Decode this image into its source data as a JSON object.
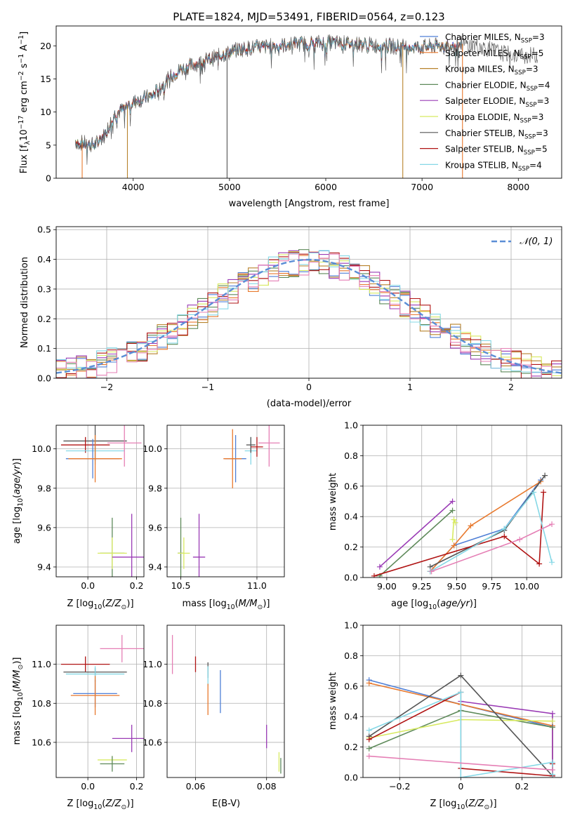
{
  "figure_title": "PLATE=1824, MJD=53491, FIBERID=0564, z=0.123",
  "colors": {
    "chabrier_miles": "#4f7fd6",
    "salpeter_miles": "#e8792e",
    "kroupa_miles": "#b8832c",
    "chabrier_elodie": "#5e8a5a",
    "salpeter_elodie": "#9a3bb5",
    "kroupa_elodie": "#d8ea62",
    "chabrier_stelib": "#555555",
    "salpeter_stelib": "#b01414",
    "kroupa_stelib": "#86d8e6",
    "pink": "#e57fb5",
    "normal": "#5b8ed6",
    "grid": "#b0b0b0"
  },
  "chart_data": [
    {
      "id": "spectrum",
      "type": "line",
      "xlabel": "wavelength [Angstrom, rest frame]",
      "ylabel": "Flux [f_λ10^-17 erg cm^-2 s^-1 A^-1]",
      "xlim": [
        3200,
        8450
      ],
      "ylim": [
        0,
        23
      ],
      "xticks": [
        4000,
        5000,
        6000,
        7000,
        8000
      ],
      "yticks": [
        0,
        5,
        10,
        15,
        20
      ],
      "grid": false,
      "legend_position": "top-right",
      "legend": [
        {
          "label": "Chabrier MILES, N",
          "sub": "SSP",
          "tail": "=3",
          "color": "#4f7fd6"
        },
        {
          "label": "Salpeter MILES, N",
          "sub": "SSP",
          "tail": "=5",
          "color": "#e8792e"
        },
        {
          "label": "Kroupa MILES, N",
          "sub": "SSP",
          "tail": "=3",
          "color": "#b8832c"
        },
        {
          "label": "Chabrier ELODIE, N",
          "sub": "SSP",
          "tail": "=4",
          "color": "#5e8a5a"
        },
        {
          "label": "Salpeter ELODIE, N",
          "sub": "SSP",
          "tail": "=3",
          "color": "#9a3bb5"
        },
        {
          "label": "Kroupa ELODIE, N",
          "sub": "SSP",
          "tail": "=3",
          "color": "#d8ea62"
        },
        {
          "label": "Chabrier STELIB, N",
          "sub": "SSP",
          "tail": "=3",
          "color": "#555555"
        },
        {
          "label": "Salpeter STELIB, N",
          "sub": "SSP",
          "tail": "=5",
          "color": "#b01414"
        },
        {
          "label": "Kroupa STELIB, N",
          "sub": "SSP",
          "tail": "=4",
          "color": "#86d8e6"
        }
      ],
      "continuum": [
        [
          3400,
          5.5
        ],
        [
          3600,
          5.0
        ],
        [
          3700,
          6.5
        ],
        [
          3800,
          9.5
        ],
        [
          3900,
          10.5
        ],
        [
          4000,
          11.5
        ],
        [
          4100,
          12.0
        ],
        [
          4200,
          12.5
        ],
        [
          4300,
          14.0
        ],
        [
          4400,
          15.5
        ],
        [
          4500,
          16.5
        ],
        [
          4700,
          17.5
        ],
        [
          4900,
          18.5
        ],
        [
          5100,
          19.5
        ],
        [
          5300,
          19.8
        ],
        [
          5500,
          20.0
        ],
        [
          5700,
          20.3
        ],
        [
          6000,
          20.5
        ],
        [
          6300,
          20.3
        ],
        [
          6600,
          20.0
        ],
        [
          7000,
          19.8
        ],
        [
          7200,
          20.0
        ],
        [
          7400,
          20.3
        ],
        [
          7600,
          20.0
        ],
        [
          7800,
          19.0
        ],
        [
          8000,
          18.5
        ],
        [
          8200,
          18.6
        ]
      ],
      "drop_lines_x": [
        3470,
        3940,
        4975,
        6800,
        7420
      ],
      "clipped_models_end_x": 7420,
      "data_end_x": 8200
    },
    {
      "id": "residual_hist",
      "type": "histogram",
      "xlabel": "(data-model)/error",
      "ylabel": "Normed distribution",
      "xlim": [
        -2.5,
        2.5
      ],
      "ylim": [
        0,
        0.51
      ],
      "xticks": [
        -2,
        -1,
        0,
        1,
        2
      ],
      "yticks": [
        0.0,
        0.1,
        0.2,
        0.3,
        0.4,
        0.5
      ],
      "grid": true,
      "legend_position": "top-right",
      "legend_label": "𝒩(0, 1)",
      "bin_width": 0.1
    },
    {
      "id": "age_vs_Z",
      "type": "errorbar",
      "xlabel": "Z [log10(Z/Z⊙)]",
      "ylabel": "age [log10(age/yr)]",
      "xlim": [
        -0.13,
        0.23
      ],
      "ylim": [
        9.35,
        10.12
      ],
      "xticks": [
        0.0,
        0.2
      ],
      "yticks": [
        9.4,
        9.6,
        9.8,
        10.0
      ],
      "grid": true,
      "points": [
        {
          "color": "#555555",
          "x": 0.03,
          "xerr": 0.13,
          "y": 10.04,
          "yerr": 0.1
        },
        {
          "color": "#b01414",
          "x": -0.01,
          "xerr": 0.1,
          "y": 10.02,
          "yerr": 0.04
        },
        {
          "color": "#86d8e6",
          "x": 0.03,
          "xerr": 0.12,
          "y": 9.99,
          "yerr": 0.07
        },
        {
          "color": "#e57fb5",
          "x": 0.15,
          "xerr": 0.07,
          "y": 10.03,
          "yerr": 0.12
        },
        {
          "color": "#4f7fd6",
          "x": 0.02,
          "xerr": 0.11,
          "y": 9.95,
          "yerr": 0.1
        },
        {
          "color": "#e8792e",
          "x": 0.03,
          "xerr": 0.11,
          "y": 9.95,
          "yerr": 0.12
        },
        {
          "color": "#5e8a5a",
          "x": 0.1,
          "xerr": 0.05,
          "y": 9.47,
          "yerr": 0.18
        },
        {
          "color": "#d8ea62",
          "x": 0.1,
          "xerr": 0.06,
          "y": 9.47,
          "yerr": 0.08
        },
        {
          "color": "#9a3bb5",
          "x": 0.18,
          "xerr": 0.08,
          "y": 9.45,
          "yerr": 0.22
        }
      ]
    },
    {
      "id": "age_vs_mass",
      "type": "errorbar",
      "xlabel": "mass [log10(M/M⊙)]",
      "ylabel": "",
      "xlim": [
        10.41,
        11.18
      ],
      "ylim": [
        9.35,
        10.12
      ],
      "xticks": [
        10.5,
        11.0
      ],
      "yticks": [
        9.4,
        9.6,
        9.8,
        10.0
      ],
      "grid": true,
      "points": [
        {
          "color": "#5e8a5a",
          "x": 10.5,
          "xerr": 0.02,
          "y": 9.47,
          "yerr": 0.18
        },
        {
          "color": "#d8ea62",
          "x": 10.52,
          "xerr": 0.04,
          "y": 9.47,
          "yerr": 0.08
        },
        {
          "color": "#9a3bb5",
          "x": 10.62,
          "xerr": 0.04,
          "y": 9.45,
          "yerr": 0.22
        },
        {
          "color": "#4f7fd6",
          "x": 10.86,
          "xerr": 0.07,
          "y": 9.95,
          "yerr": 0.12
        },
        {
          "color": "#e8792e",
          "x": 10.84,
          "xerr": 0.06,
          "y": 9.95,
          "yerr": 0.15
        },
        {
          "color": "#86d8e6",
          "x": 10.96,
          "xerr": 0.04,
          "y": 9.99,
          "yerr": 0.07
        },
        {
          "color": "#555555",
          "x": 10.96,
          "xerr": 0.03,
          "y": 10.02,
          "yerr": 0.04
        },
        {
          "color": "#b01414",
          "x": 11.0,
          "xerr": 0.04,
          "y": 10.01,
          "yerr": 0.05
        },
        {
          "color": "#e57fb5",
          "x": 11.08,
          "xerr": 0.07,
          "y": 10.03,
          "yerr": 0.12
        }
      ]
    },
    {
      "id": "massweight_vs_age",
      "type": "line",
      "xlabel": "age [log10(age/yr)]",
      "ylabel": "mass weight",
      "xlim": [
        8.83,
        10.25
      ],
      "ylim": [
        0.0,
        1.0
      ],
      "xticks": [
        9.0,
        9.25,
        9.5,
        9.75,
        10.0
      ],
      "yticks": [
        0.0,
        0.2,
        0.4,
        0.6,
        0.8,
        1.0
      ],
      "grid": true,
      "series": [
        {
          "color": "#4f7fd6",
          "x": [
            9.31,
            9.48,
            9.84,
            10.1
          ],
          "y": [
            0.04,
            0.21,
            0.32,
            0.64
          ]
        },
        {
          "color": "#e8792e",
          "x": [
            9.31,
            9.48,
            9.6,
            10.1
          ],
          "y": [
            0.04,
            0.21,
            0.34,
            0.63
          ]
        },
        {
          "color": "#5e8a5a",
          "x": [
            8.95,
            9.47
          ],
          "y": [
            0.01,
            0.44
          ]
        },
        {
          "color": "#9a3bb5",
          "x": [
            8.95,
            9.47
          ],
          "y": [
            0.07,
            0.5
          ]
        },
        {
          "color": "#d8ea62",
          "x": [
            9.47,
            9.48,
            9.49
          ],
          "y": [
            0.25,
            0.38,
            0.36
          ]
        },
        {
          "color": "#555555",
          "x": [
            9.31,
            9.84,
            10.13
          ],
          "y": [
            0.07,
            0.31,
            0.67
          ]
        },
        {
          "color": "#b01414",
          "x": [
            8.91,
            9.84,
            10.09,
            10.12
          ],
          "y": [
            0.01,
            0.27,
            0.09,
            0.56
          ]
        },
        {
          "color": "#86d8e6",
          "x": [
            9.31,
            9.84,
            10.05,
            10.18
          ],
          "y": [
            0.04,
            0.32,
            0.56,
            0.1
          ]
        },
        {
          "color": "#e57fb5",
          "x": [
            9.32,
            9.95,
            10.18
          ],
          "y": [
            0.04,
            0.25,
            0.35
          ]
        }
      ]
    },
    {
      "id": "mass_vs_Z",
      "type": "errorbar",
      "xlabel": "Z [log10(Z/Z⊙)]",
      "ylabel": "mass [log10(M/M⊙)]",
      "xlim": [
        -0.13,
        0.23
      ],
      "ylim": [
        10.42,
        11.2
      ],
      "xticks": [
        0.0,
        0.2
      ],
      "yticks": [
        10.6,
        10.8,
        11.0
      ],
      "grid": true,
      "points": [
        {
          "color": "#e57fb5",
          "x": 0.14,
          "xerr": 0.09,
          "y": 11.08,
          "yerr": 0.07
        },
        {
          "color": "#b01414",
          "x": -0.01,
          "xerr": 0.1,
          "y": 11.0,
          "yerr": 0.04
        },
        {
          "color": "#555555",
          "x": 0.03,
          "xerr": 0.13,
          "y": 10.96,
          "yerr": 0.02
        },
        {
          "color": "#86d8e6",
          "x": 0.03,
          "xerr": 0.12,
          "y": 10.95,
          "yerr": 0.04
        },
        {
          "color": "#4f7fd6",
          "x": 0.03,
          "xerr": 0.09,
          "y": 10.85,
          "yerr": 0.07
        },
        {
          "color": "#e8792e",
          "x": 0.03,
          "xerr": 0.1,
          "y": 10.84,
          "yerr": 0.1
        },
        {
          "color": "#9a3bb5",
          "x": 0.18,
          "xerr": 0.08,
          "y": 10.62,
          "yerr": 0.07
        },
        {
          "color": "#d8ea62",
          "x": 0.1,
          "xerr": 0.06,
          "y": 10.51,
          "yerr": 0.02
        },
        {
          "color": "#5e8a5a",
          "x": 0.1,
          "xerr": 0.05,
          "y": 10.49,
          "yerr": 0.04
        }
      ]
    },
    {
      "id": "mass_vs_ebv",
      "type": "errorbar",
      "xlabel": "E(B-V)",
      "ylabel": "",
      "xlim": [
        0.052,
        0.085
      ],
      "ylim": [
        10.42,
        11.2
      ],
      "xticks": [
        0.06,
        0.08
      ],
      "yticks": [
        10.6,
        10.8,
        11.0
      ],
      "grid": true,
      "points": [
        {
          "color": "#e57fb5",
          "x": 0.0535,
          "xerr": 0,
          "y": 11.05,
          "yerr": 0.1
        },
        {
          "color": "#b01414",
          "x": 0.06,
          "xerr": 0,
          "y": 11.0,
          "yerr": 0.04
        },
        {
          "color": "#555555",
          "x": 0.0635,
          "xerr": 0,
          "y": 10.97,
          "yerr": 0.04
        },
        {
          "color": "#86d8e6",
          "x": 0.0635,
          "xerr": 0,
          "y": 10.94,
          "yerr": 0.05
        },
        {
          "color": "#e8792e",
          "x": 0.0635,
          "xerr": 0,
          "y": 10.82,
          "yerr": 0.08
        },
        {
          "color": "#4f7fd6",
          "x": 0.067,
          "xerr": 0,
          "y": 10.86,
          "yerr": 0.11
        },
        {
          "color": "#9a3bb5",
          "x": 0.08,
          "xerr": 0,
          "y": 10.63,
          "yerr": 0.06
        },
        {
          "color": "#d8ea62",
          "x": 0.0835,
          "xerr": 0,
          "y": 10.5,
          "yerr": 0.05
        },
        {
          "color": "#5e8a5a",
          "x": 0.084,
          "xerr": 0,
          "y": 10.48,
          "yerr": 0.04
        }
      ]
    },
    {
      "id": "massweight_vs_Z",
      "type": "line",
      "xlabel": "Z [log10(Z/Z⊙)]",
      "ylabel": "mass weight",
      "xlim": [
        -0.32,
        0.33
      ],
      "ylim": [
        0.0,
        1.0
      ],
      "xticks": [
        -0.2,
        0.0,
        0.2
      ],
      "yticks": [
        0.0,
        0.2,
        0.4,
        0.6,
        0.8,
        1.0
      ],
      "grid": true,
      "series": [
        {
          "color": "#4f7fd6",
          "x": [
            -0.3,
            0.0,
            0.3,
            0.3
          ],
          "y": [
            0.64,
            0.48,
            0.33,
            0.01
          ]
        },
        {
          "color": "#e8792e",
          "x": [
            -0.3,
            0.0,
            0.3,
            0.3
          ],
          "y": [
            0.62,
            0.48,
            0.34,
            0.02
          ]
        },
        {
          "color": "#9a3bb5",
          "x": [
            0.0,
            0.3,
            0.3
          ],
          "y": [
            0.5,
            0.42,
            0.01
          ]
        },
        {
          "color": "#5e8a5a",
          "x": [
            -0.3,
            0.0,
            0.3
          ],
          "y": [
            0.19,
            0.44,
            0.33
          ]
        },
        {
          "color": "#d8ea62",
          "x": [
            -0.3,
            0.0,
            0.3
          ],
          "y": [
            0.26,
            0.38,
            0.37
          ]
        },
        {
          "color": "#555555",
          "x": [
            -0.3,
            0.0,
            0.3
          ],
          "y": [
            0.27,
            0.67,
            0.01
          ]
        },
        {
          "color": "#b01414",
          "x": [
            -0.3,
            0.0,
            0.0,
            0.3,
            0.3
          ],
          "y": [
            0.25,
            0.56,
            0.06,
            0.01,
            0.09
          ]
        },
        {
          "color": "#86d8e6",
          "x": [
            -0.3,
            0.0,
            0.0,
            0.3,
            0.3
          ],
          "y": [
            0.31,
            0.56,
            0.0,
            0.1,
            0.02
          ]
        },
        {
          "color": "#e57fb5",
          "x": [
            -0.3,
            0.3
          ],
          "y": [
            0.14,
            0.05
          ]
        }
      ]
    }
  ]
}
